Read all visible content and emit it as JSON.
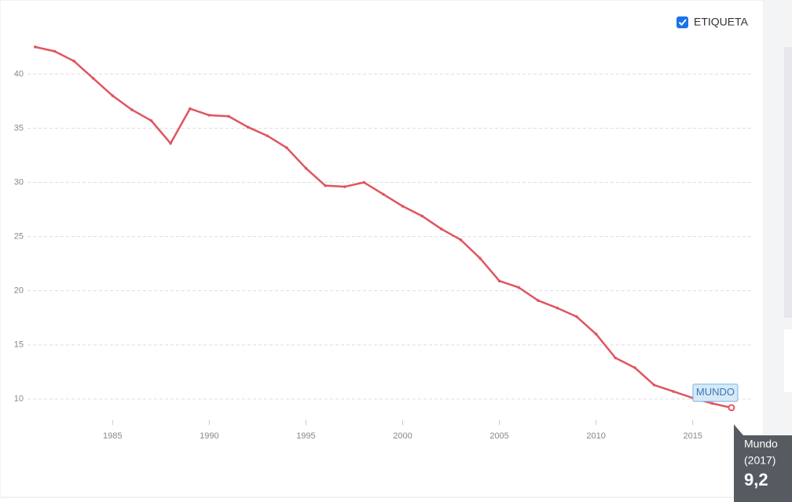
{
  "chart_data": {
    "type": "line",
    "x": [
      1981,
      1982,
      1983,
      1984,
      1985,
      1986,
      1987,
      1988,
      1989,
      1990,
      1991,
      1992,
      1993,
      1994,
      1995,
      1996,
      1997,
      1998,
      1999,
      2000,
      2001,
      2002,
      2003,
      2004,
      2005,
      2006,
      2007,
      2008,
      2009,
      2010,
      2011,
      2012,
      2013,
      2014,
      2015,
      2016,
      2017
    ],
    "series": [
      {
        "name": "Mundo",
        "color": "#e0555f",
        "values": [
          42.5,
          42.1,
          41.2,
          39.6,
          38.0,
          36.7,
          35.7,
          33.6,
          36.8,
          36.2,
          36.1,
          35.1,
          34.3,
          33.2,
          31.3,
          29.7,
          29.6,
          30.0,
          28.9,
          27.8,
          26.9,
          25.7,
          24.7,
          23.0,
          20.9,
          20.3,
          19.1,
          18.4,
          17.6,
          16.0,
          13.8,
          12.9,
          11.3,
          10.7,
          10.1,
          9.6,
          9.2
        ]
      }
    ],
    "line_label": "MUNDO",
    "legend_label": "ETIQUETA",
    "tooltip": {
      "period": "(2017)",
      "value_label": "9,2"
    },
    "xlim": [
      1980.6,
      2018.1
    ],
    "xticks": [
      1985,
      1990,
      1995,
      2000,
      2005,
      2010,
      2015
    ],
    "ylim": [
      8.1,
      44.3
    ],
    "yticks": [
      10,
      15,
      20,
      25,
      30,
      35,
      40
    ],
    "grid": true
  }
}
